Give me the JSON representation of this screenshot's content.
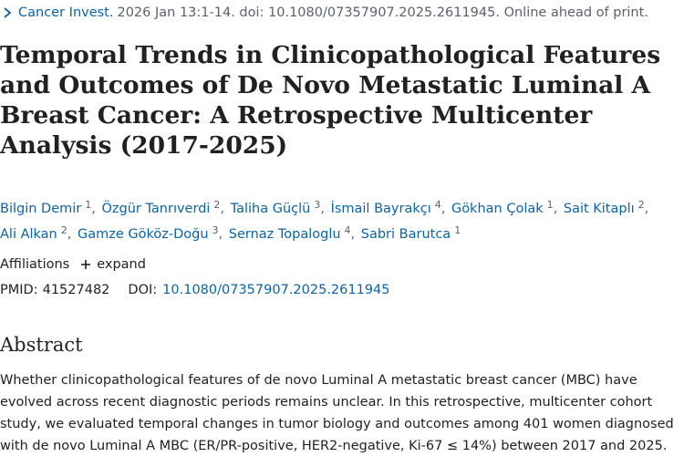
{
  "citation": {
    "journal": "Cancer Invest.",
    "details": "2026 Jan 13:1-14. doi: 10.1080/07357907.2025.2611945. Online ahead of print."
  },
  "article": {
    "title": "Temporal Trends in Clinicopathological Features and Outcomes of De Novo Metastatic Luminal A Breast Cancer: A Retrospective Multicenter Analysis (2017-2025)"
  },
  "authors": [
    {
      "name": "Bilgin Demir",
      "aff": "1"
    },
    {
      "name": "Özgür Tanrıverdi",
      "aff": "2"
    },
    {
      "name": "Taliha Güçlü",
      "aff": "3"
    },
    {
      "name": "İsmail Bayrakçı",
      "aff": "4"
    },
    {
      "name": "Gökhan Çolak",
      "aff": "1"
    },
    {
      "name": "Sait Kitaplı",
      "aff": "2"
    },
    {
      "name": "Ali Alkan",
      "aff": "2"
    },
    {
      "name": "Gamze Gököz-Doğu",
      "aff": "3"
    },
    {
      "name": "Sernaz Topaloglu",
      "aff": "4"
    },
    {
      "name": "Sabri Barutca",
      "aff": "1"
    }
  ],
  "affiliations": {
    "label": "Affiliations",
    "expand_label": "expand"
  },
  "identifiers": {
    "pmid_label": "PMID:",
    "pmid": "41527482",
    "doi_label": "DOI:",
    "doi": "10.1080/07357907.2025.2611945"
  },
  "abstract": {
    "heading": "Abstract",
    "text": "Whether clinicopathological features of de novo Luminal A metastatic breast cancer (MBC) have evolved across recent diagnostic periods remains unclear. In this retrospective, multicenter cohort study, we evaluated temporal changes in tumor biology and outcomes among 401 women diagnosed with de novo Luminal A MBC (ER/PR-positive, HER2-negative, Ki-67 ≤ 14%) between 2017 and 2025."
  },
  "colors": {
    "link": "#0b63a8",
    "text": "#212121",
    "muted": "#5b616b"
  }
}
